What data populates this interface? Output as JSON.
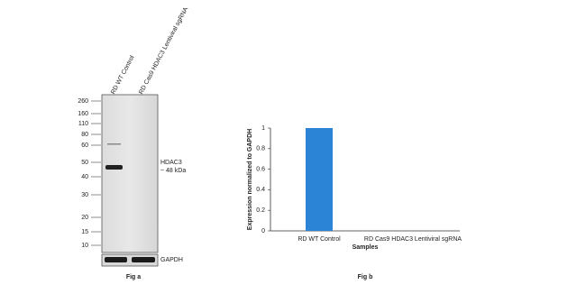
{
  "figure_a": {
    "lanes": [
      "RD WT Control",
      "RD Cas9 HDAC3 Lentiviral sgRNA"
    ],
    "markers": [
      260,
      160,
      110,
      80,
      60,
      50,
      40,
      30,
      20,
      15,
      10
    ],
    "target": "HDAC3",
    "target_size": "~ 48 kDa",
    "control": "GAPDH",
    "caption": "Fig a"
  },
  "chart_data": {
    "type": "bar",
    "caption": "Fig b",
    "x_label": "Samples",
    "y_label": "Expression normalized to GAPDH",
    "categories": [
      "RD WT Control",
      "RD Cas9 HDAC3 Lentiviral sgRNA"
    ],
    "values": [
      1,
      0
    ],
    "color": "#2b84d6",
    "ylim": [
      0,
      1
    ],
    "yticks": [
      0,
      0.2,
      0.4,
      0.6,
      0.8,
      1
    ]
  }
}
